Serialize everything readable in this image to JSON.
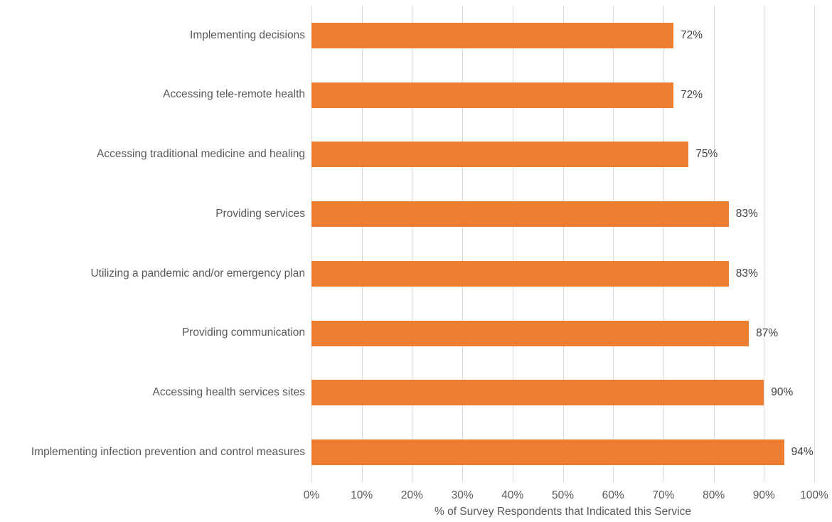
{
  "chart_data": {
    "type": "bar",
    "orientation": "horizontal",
    "title": "",
    "xlabel": "% of Survey Respondents that Indicated this Service",
    "ylabel": "",
    "categories": [
      "Implementing decisions",
      "Accessing tele-remote health",
      "Accessing traditional medicine and healing",
      "Providing services",
      "Utilizing a pandemic and/or emergency plan",
      "Providing communication",
      "Accessing health services sites",
      "Implementing infection prevention and control measures"
    ],
    "values": [
      72,
      72,
      75,
      83,
      83,
      87,
      90,
      94
    ],
    "value_labels": [
      "72%",
      "72%",
      "75%",
      "83%",
      "83%",
      "87%",
      "90%",
      "94%"
    ],
    "xlim": [
      0,
      100
    ],
    "x_ticks": [
      "0%",
      "10%",
      "20%",
      "30%",
      "40%",
      "50%",
      "60%",
      "70%",
      "80%",
      "90%",
      "100%"
    ],
    "x_tick_step": 10,
    "grid": "vertical-only",
    "legend": "none",
    "colors": {
      "bar": "#ED7D31",
      "gridline": "#D9D9D9",
      "axis_text": "#595959",
      "value_label_text": "#404040",
      "background": "#FFFFFF"
    }
  }
}
